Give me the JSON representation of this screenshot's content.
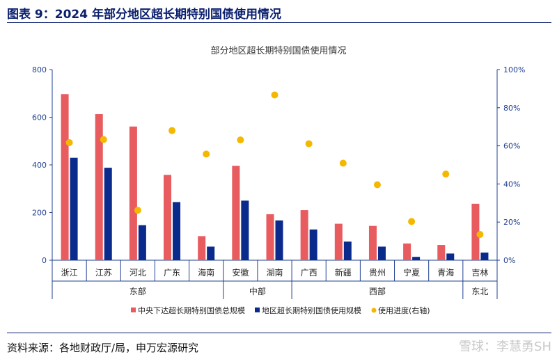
{
  "header": {
    "title": "图表 9：2024 年部分地区超长期特别国债使用情况"
  },
  "footer": {
    "source": "资料来源：各地财政厅/局，申万宏源研究",
    "watermark": "雪球：李慧勇SH"
  },
  "colors": {
    "total": "#e85b5e",
    "used": "#0a2a8c",
    "progress": "#f5b800",
    "axis": "#1f3f8f",
    "title": "#0a1f6e"
  },
  "chart_data": {
    "type": "bar",
    "title": "部分地区超长期特别国债使用情况",
    "categories": [
      "浙江",
      "江苏",
      "河北",
      "广东",
      "海南",
      "安徽",
      "湖南",
      "广西",
      "新疆",
      "贵州",
      "宁夏",
      "青海",
      "吉林"
    ],
    "groups": [
      {
        "label": "东部",
        "count": 5
      },
      {
        "label": "中部",
        "count": 2
      },
      {
        "label": "西部",
        "count": 5
      },
      {
        "label": "东北",
        "count": 1
      }
    ],
    "series": [
      {
        "name": "中央下达超长期特别国债总规模",
        "type": "bar",
        "axis": "left",
        "values": [
          697,
          613,
          561,
          358,
          101,
          396,
          193,
          210,
          153,
          144,
          70,
          64,
          237
        ]
      },
      {
        "name": "地区超长期特别国债使用规模",
        "type": "bar",
        "axis": "left",
        "values": [
          430,
          388,
          147,
          244,
          57,
          250,
          167,
          129,
          78,
          57,
          14,
          28,
          32
        ]
      },
      {
        "name": "使用进度(右轴)",
        "type": "scatter",
        "axis": "right",
        "values": [
          61.7,
          63.3,
          26.2,
          68.0,
          55.7,
          63.1,
          86.7,
          61.1,
          50.9,
          39.6,
          20.3,
          45.2,
          13.5
        ]
      }
    ],
    "ylim": [
      0,
      800
    ],
    "yticks": [
      "0",
      "200",
      "400",
      "600",
      "800"
    ],
    "y2lim": [
      0,
      100
    ],
    "y2ticks": [
      "0%",
      "20%",
      "40%",
      "60%",
      "80%",
      "100%"
    ],
    "legend_position": "bottom"
  }
}
